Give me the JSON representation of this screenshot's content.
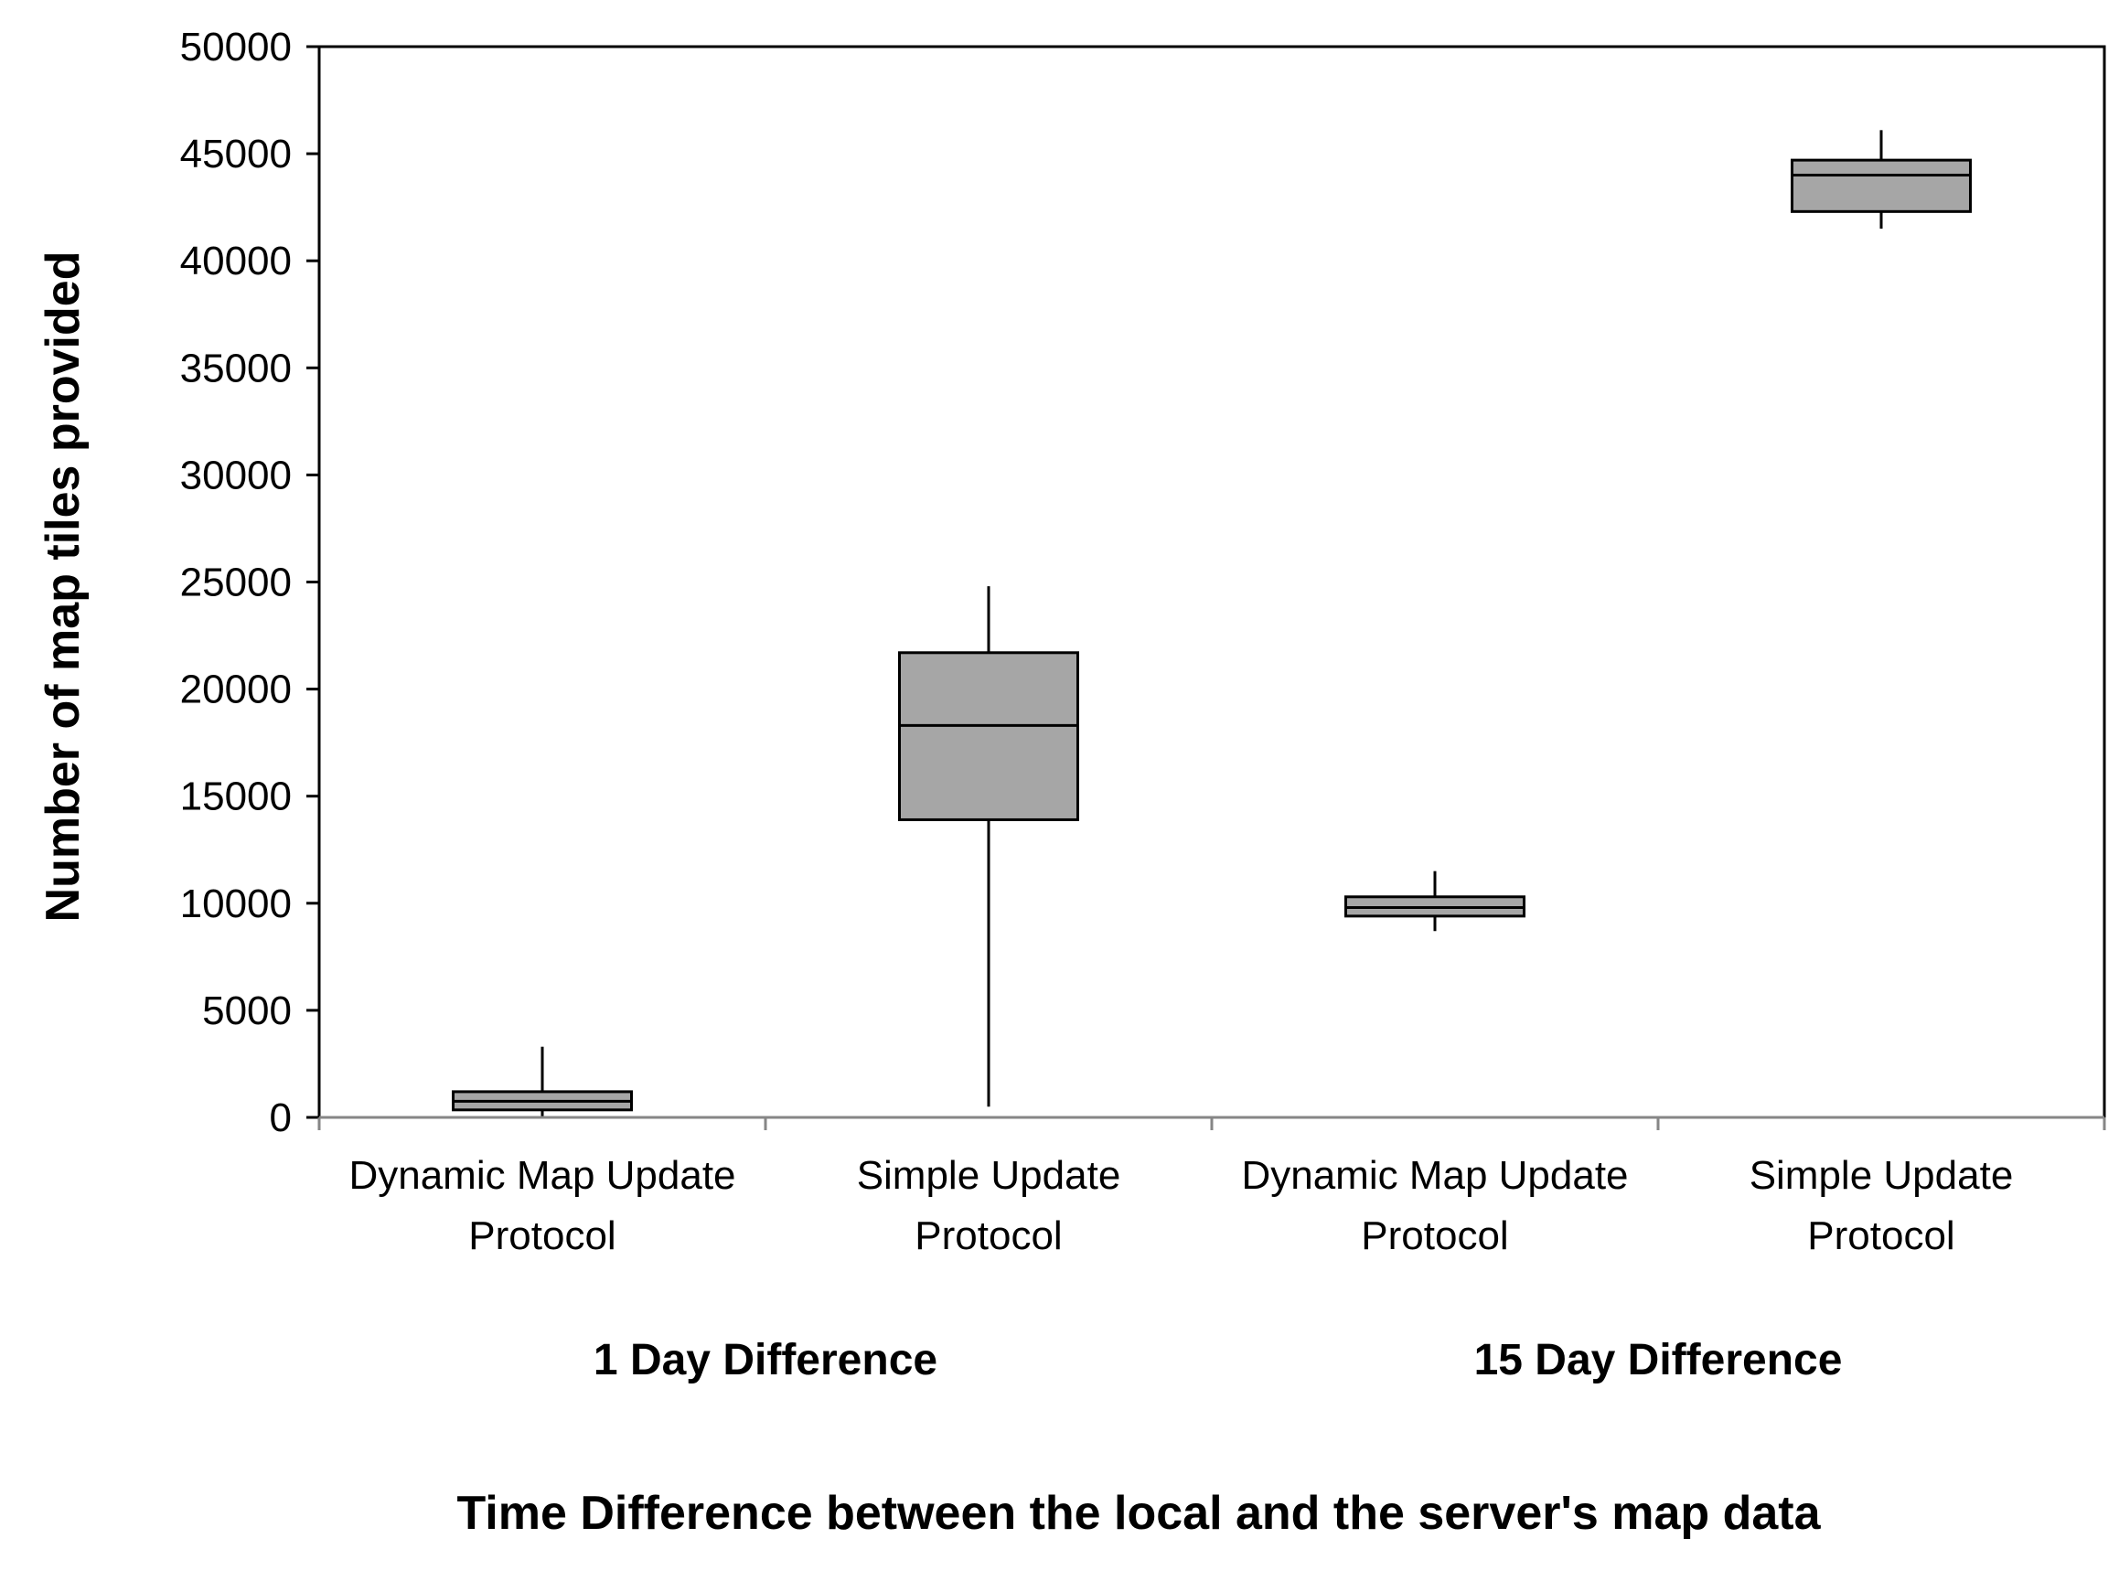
{
  "chart_data": {
    "type": "boxplot",
    "title": "",
    "xlabel": "Time Difference between the local and the server's map data",
    "ylabel": "Number of map tiles provided",
    "ylim": [
      0,
      50000
    ],
    "yticks": [
      0,
      5000,
      10000,
      15000,
      20000,
      25000,
      30000,
      35000,
      40000,
      45000,
      50000
    ],
    "grid": false,
    "legend": "none",
    "colors": {
      "box_fill": "#a6a6a6",
      "stroke": "#000000",
      "axis": "#868686"
    },
    "groups": [
      {
        "label": "1 Day Difference",
        "categories": [
          0,
          1
        ]
      },
      {
        "label": "15 Day Difference",
        "categories": [
          2,
          3
        ]
      }
    ],
    "categories": [
      [
        "Dynamic Map Update",
        "Protocol"
      ],
      [
        "Simple Update",
        "Protocol"
      ],
      [
        "Dynamic Map Update",
        "Protocol"
      ],
      [
        "Simple Update",
        "Protocol"
      ]
    ],
    "boxes": [
      {
        "min": 50,
        "q1": 350,
        "median": 750,
        "q3": 1200,
        "max": 3300
      },
      {
        "min": 500,
        "q1": 13900,
        "median": 18300,
        "q3": 21700,
        "max": 24800
      },
      {
        "min": 8700,
        "q1": 9400,
        "median": 9800,
        "q3": 10300,
        "max": 11500
      },
      {
        "min": 41500,
        "q1": 42300,
        "median": 44000,
        "q3": 44700,
        "max": 46100
      }
    ]
  }
}
